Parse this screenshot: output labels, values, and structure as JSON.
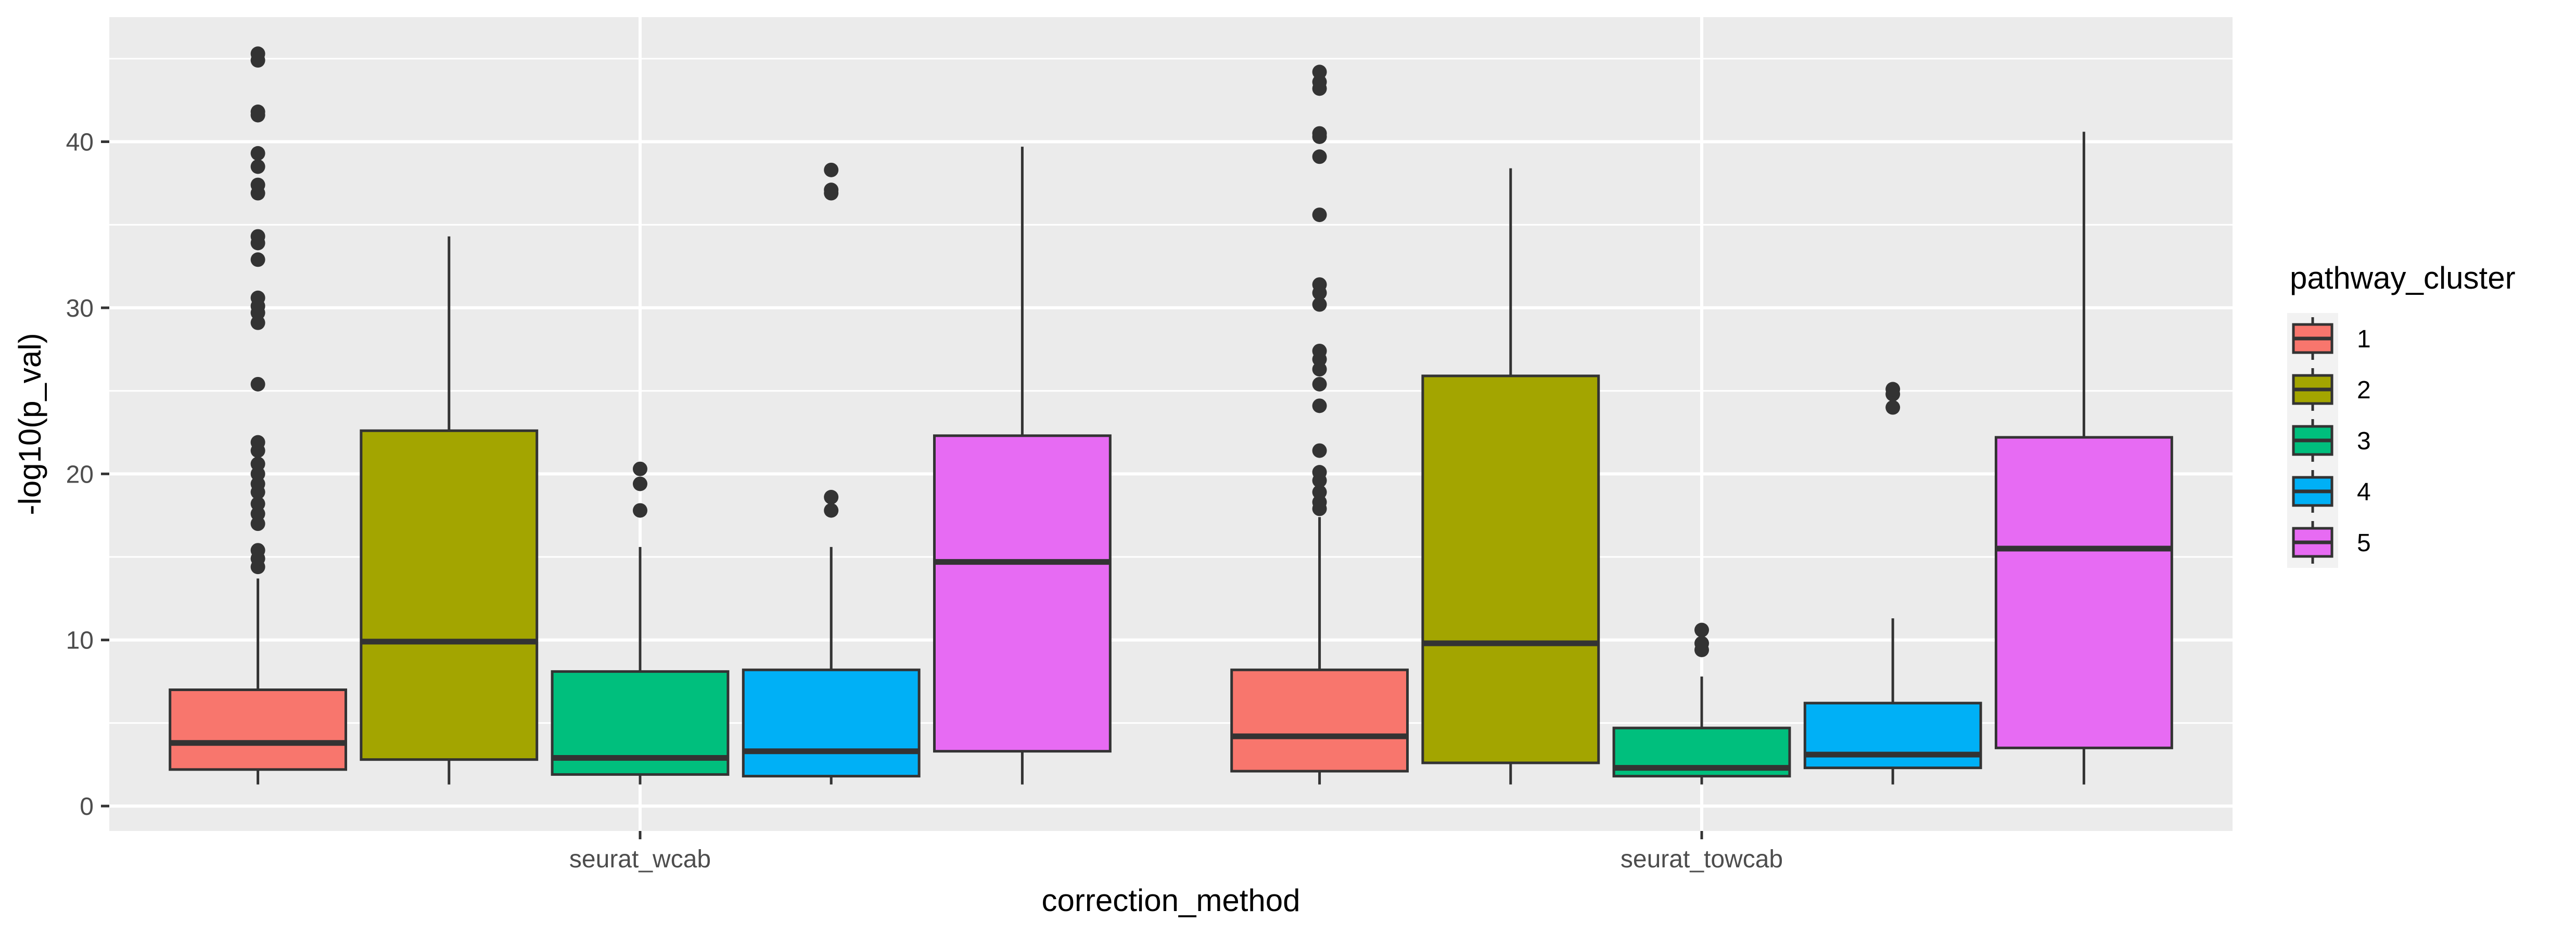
{
  "chart_data": {
    "type": "boxplot",
    "title": "",
    "xlabel": "correction_method",
    "ylabel": "-log10(p_val)",
    "categories": [
      "seurat_wcab",
      "seurat_towcab"
    ],
    "ylim": [
      -1.5,
      47.5
    ],
    "yticks": [
      0,
      10,
      20,
      30,
      40
    ],
    "grid": true,
    "legend": {
      "title": "pathway_cluster",
      "position": "right"
    },
    "series": [
      {
        "name": "1",
        "color": "#F8766D",
        "boxes": [
          {
            "whisker_low": 1.3,
            "q1": 2.2,
            "median": 3.8,
            "q3": 7.0,
            "whisker_high": 13.7,
            "outliers": [
              14.4,
              14.9,
              15.4,
              17.0,
              17.6,
              18.2,
              18.9,
              19.4,
              20.0,
              20.6,
              21.4,
              21.9,
              25.4,
              29.1,
              29.7,
              30.1,
              30.6,
              32.9,
              33.9,
              34.3,
              36.9,
              37.4,
              38.5,
              39.3,
              41.6,
              41.8,
              44.9,
              45.3
            ]
          },
          {
            "whisker_low": 1.3,
            "q1": 2.1,
            "median": 4.2,
            "q3": 8.2,
            "whisker_high": 17.4,
            "outliers": [
              17.9,
              18.3,
              18.9,
              19.6,
              20.1,
              21.4,
              24.1,
              25.4,
              26.3,
              26.9,
              27.4,
              30.2,
              30.9,
              31.4,
              35.6,
              39.1,
              40.3,
              40.5,
              43.2,
              43.6,
              44.2
            ]
          }
        ]
      },
      {
        "name": "2",
        "color": "#A3A500",
        "boxes": [
          {
            "whisker_low": 1.3,
            "q1": 2.8,
            "median": 9.9,
            "q3": 22.6,
            "whisker_high": 34.3,
            "outliers": []
          },
          {
            "whisker_low": 1.3,
            "q1": 2.6,
            "median": 9.8,
            "q3": 25.9,
            "whisker_high": 38.4,
            "outliers": []
          }
        ]
      },
      {
        "name": "3",
        "color": "#00BF7D",
        "boxes": [
          {
            "whisker_low": 1.3,
            "q1": 1.9,
            "median": 2.9,
            "q3": 8.1,
            "whisker_high": 15.6,
            "outliers": [
              17.8,
              19.4,
              20.3
            ]
          },
          {
            "whisker_low": 1.3,
            "q1": 1.8,
            "median": 2.3,
            "q3": 4.7,
            "whisker_high": 7.8,
            "outliers": [
              9.4,
              9.8,
              10.6
            ]
          }
        ]
      },
      {
        "name": "4",
        "color": "#00B0F6",
        "boxes": [
          {
            "whisker_low": 1.3,
            "q1": 1.8,
            "median": 3.3,
            "q3": 8.2,
            "whisker_high": 15.6,
            "outliers": [
              17.8,
              18.6,
              36.9,
              37.1,
              38.3
            ]
          },
          {
            "whisker_low": 1.3,
            "q1": 2.3,
            "median": 3.1,
            "q3": 6.2,
            "whisker_high": 11.3,
            "outliers": [
              24.0,
              24.8,
              25.1
            ]
          }
        ]
      },
      {
        "name": "5",
        "color": "#E76BF3",
        "boxes": [
          {
            "whisker_low": 1.3,
            "q1": 3.3,
            "median": 14.7,
            "q3": 22.3,
            "whisker_high": 39.7,
            "outliers": []
          },
          {
            "whisker_low": 1.3,
            "q1": 3.5,
            "median": 15.5,
            "q3": 22.2,
            "whisker_high": 40.6,
            "outliers": []
          }
        ]
      }
    ]
  }
}
